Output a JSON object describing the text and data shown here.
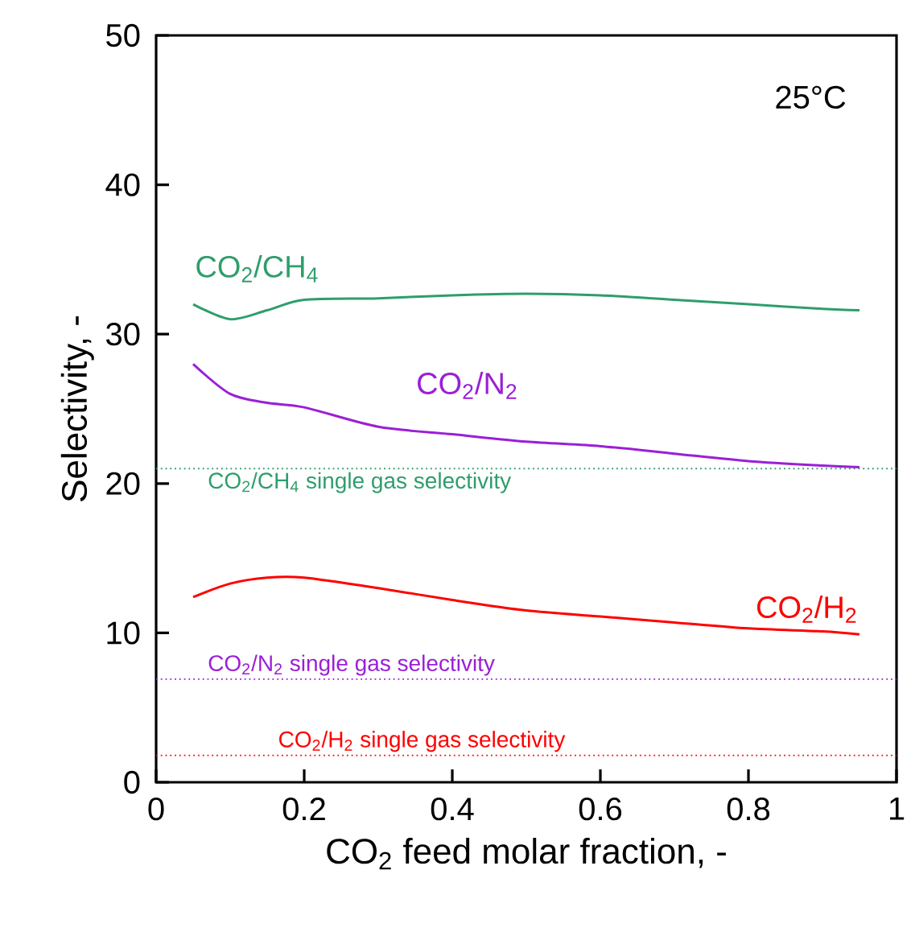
{
  "chart_data": {
    "type": "line",
    "xlabel": "CO$_{2}$ feed molar fraction, -",
    "ylabel": "Selectivity, -",
    "xlim": [
      0,
      1
    ],
    "ylim": [
      0,
      50
    ],
    "xticks": [
      0,
      0.2,
      0.4,
      0.6,
      0.8,
      1
    ],
    "yticks": [
      0,
      10,
      20,
      30,
      40,
      50
    ],
    "x": [
      0.05,
      0.1,
      0.15,
      0.2,
      0.3,
      0.4,
      0.5,
      0.6,
      0.7,
      0.8,
      0.9,
      0.95
    ],
    "series": [
      {
        "name": "CO$_{2}$/CH$_{4}$",
        "color": "#2e9e6b",
        "values": [
          32.0,
          31.0,
          31.6,
          32.3,
          32.4,
          32.6,
          32.7,
          32.6,
          32.3,
          32.0,
          31.7,
          31.6
        ]
      },
      {
        "name": "CO$_{2}$/N$_{2}$",
        "color": "#9b1fd6",
        "values": [
          28.0,
          26.0,
          25.4,
          25.1,
          23.8,
          23.3,
          22.8,
          22.5,
          22.0,
          21.5,
          21.2,
          21.1
        ]
      },
      {
        "name": "CO$_{2}$/H$_{2}$",
        "color": "#ff0000",
        "values": [
          12.4,
          13.3,
          13.7,
          13.7,
          13.0,
          12.2,
          11.5,
          11.1,
          10.7,
          10.3,
          10.1,
          9.9
        ]
      }
    ],
    "ref_lines": [
      {
        "axis": "y",
        "value": 21.0,
        "label": "CO$_{2}$/CH$_{4}$ single gas selectivity",
        "color": "#2e9e6b",
        "line_style": "dotted"
      },
      {
        "axis": "y",
        "value": 6.9,
        "label": "CO$_{2}$/N$_{2}$ single gas selectivity",
        "color": "#9b1fd6",
        "line_style": "dotted"
      },
      {
        "axis": "y",
        "value": 1.8,
        "label": "CO$_{2}$/H$_{2}$ single gas selectivity",
        "color": "#ff0000",
        "line_style": "dotted"
      }
    ],
    "annotations": [
      "25°C"
    ]
  }
}
